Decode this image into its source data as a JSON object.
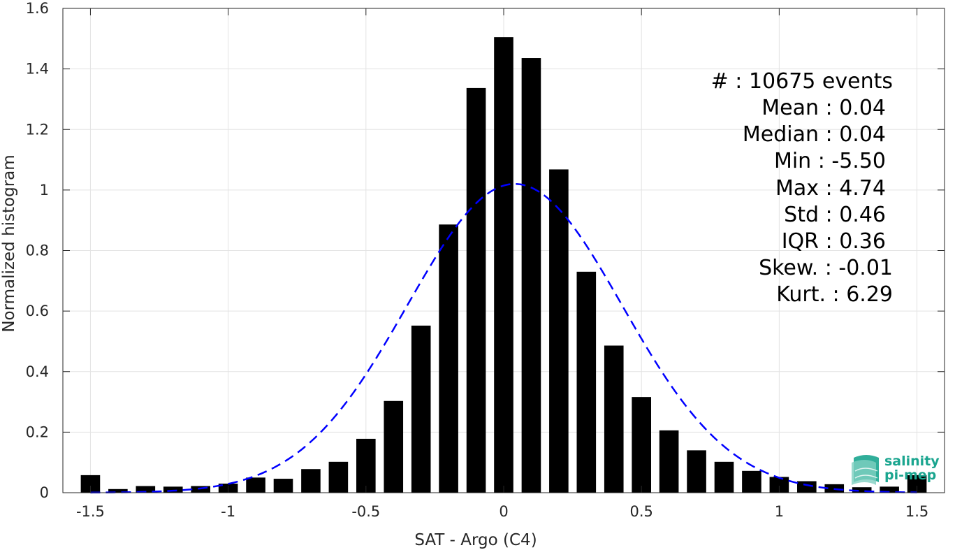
{
  "chart_data": {
    "type": "bar",
    "xlabel": "SAT - Argo (C4)",
    "ylabel": "Normalized histogram",
    "xlim": [
      -1.6,
      1.6
    ],
    "ylim": [
      0,
      1.6
    ],
    "grid": true,
    "x_ticks": [
      -1.5,
      -1,
      -0.5,
      0,
      0.5,
      1,
      1.5
    ],
    "x_tick_labels": [
      "-1.5",
      "-1",
      "-0.5",
      "0",
      "0.5",
      "1",
      "1.5"
    ],
    "y_ticks": [
      0,
      0.2,
      0.4,
      0.6,
      0.8,
      1,
      1.2,
      1.4,
      1.6
    ],
    "y_tick_labels": [
      "0",
      "0.2",
      "0.4",
      "0.6",
      "0.8",
      "1",
      "1.2",
      "1.4",
      "1.6"
    ],
    "bar_width": 0.07,
    "x": [
      -1.5,
      -1.4,
      -1.3,
      -1.2,
      -1.1,
      -1.0,
      -0.9,
      -0.8,
      -0.7,
      -0.6,
      -0.5,
      -0.4,
      -0.3,
      -0.2,
      -0.1,
      0.0,
      0.1,
      0.2,
      0.3,
      0.4,
      0.5,
      0.6,
      0.7,
      0.8,
      0.9,
      1.0,
      1.1,
      1.2,
      1.3,
      1.4,
      1.5
    ],
    "values": [
      0.058,
      0.012,
      0.022,
      0.02,
      0.022,
      0.03,
      0.05,
      0.046,
      0.078,
      0.102,
      0.178,
      0.303,
      0.552,
      0.886,
      1.337,
      1.505,
      1.436,
      1.068,
      0.73,
      0.486,
      0.316,
      0.206,
      0.14,
      0.102,
      0.072,
      0.052,
      0.038,
      0.028,
      0.018,
      0.02,
      0.058
    ],
    "bar_color": "#000000",
    "fit_curve": {
      "style": "dashed",
      "color": "#0000ff",
      "mean": 0.04,
      "std": 0.39,
      "peak": 1.02
    },
    "stats": [
      "#  : 10675 events",
      "Mean : 0.04",
      "Median : 0.04",
      "Min : -5.50",
      "Max : 4.74",
      "Std : 0.46",
      "IQR : 0.36",
      "Skew. : -0.01",
      "Kurt. : 6.29"
    ]
  },
  "logo": {
    "line1": "salinity",
    "line2": "pi-mep",
    "color": "#1aa58f"
  }
}
